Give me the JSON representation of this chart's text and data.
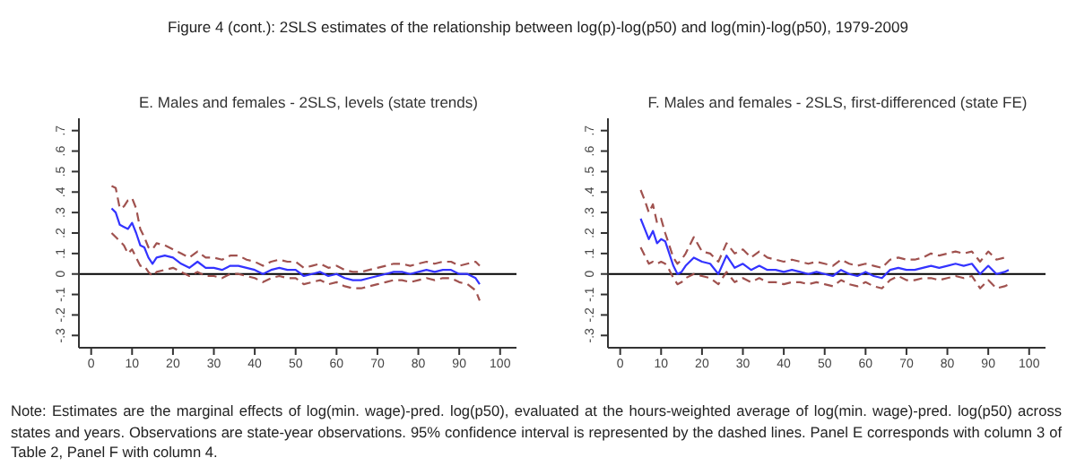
{
  "chart_data": [
    {
      "type": "line",
      "title": "E. Males and females - 2SLS, levels (state trends)",
      "annotations": [
        "Figure 4 (cont.): 2SLS estimates of the relationship between log(p)-log(p50) and log(min)-log(p50), 1979-2009",
        "Note: Estimates are the marginal effects of log(min. wage)-pred. log(p50), evaluated at the hours-weighted average of log(min. wage)-pred. log(p50) across states and years. Observations are state-year observations. 95% confidence interval is represented by the dashed lines. Panel E corresponds with column 3 of Table 2, Panel F with column 4."
      ],
      "x": [
        5,
        6,
        7,
        8,
        9,
        10,
        11,
        12,
        13,
        14,
        15,
        16,
        18,
        20,
        22,
        24,
        26,
        28,
        30,
        32,
        34,
        36,
        38,
        40,
        42,
        44,
        46,
        48,
        50,
        52,
        54,
        56,
        58,
        60,
        62,
        64,
        66,
        68,
        70,
        72,
        74,
        76,
        78,
        80,
        82,
        84,
        86,
        88,
        90,
        92,
        94,
        95
      ],
      "xlim": [
        -3,
        104
      ],
      "xticks": [
        0,
        10,
        20,
        30,
        40,
        50,
        60,
        70,
        80,
        90,
        100
      ],
      "ylim": [
        -0.36,
        0.76
      ],
      "yticks": [
        {
          "value": -0.3,
          "label": "-.3"
        },
        {
          "value": -0.2,
          "label": "-.2"
        },
        {
          "value": -0.1,
          "label": "-.1"
        },
        {
          "value": 0,
          "label": "0"
        },
        {
          "value": 0.1,
          "label": ".1"
        },
        {
          "value": 0.2,
          "label": ".2"
        },
        {
          "value": 0.3,
          "label": ".3"
        },
        {
          "value": 0.4,
          "label": ".4"
        },
        {
          "value": 0.5,
          "label": ".5"
        },
        {
          "value": 0.6,
          "label": ".6"
        },
        {
          "value": 0.7,
          "label": ".7"
        }
      ],
      "grid": false,
      "legend": false,
      "marker": "none",
      "ref_lines": [
        {
          "axis": "y",
          "value": 0,
          "color": "#000000"
        }
      ],
      "series": [
        {
          "type": "line",
          "color": "#a0524f",
          "line_style": "dashed",
          "values": [
            0.43,
            0.42,
            0.32,
            0.33,
            0.36,
            0.37,
            0.32,
            0.22,
            0.18,
            0.13,
            0.12,
            0.15,
            0.14,
            0.12,
            0.1,
            0.08,
            0.11,
            0.08,
            0.08,
            0.07,
            0.09,
            0.09,
            0.07,
            0.06,
            0.04,
            0.06,
            0.07,
            0.06,
            0.06,
            0.03,
            0.04,
            0.05,
            0.03,
            0.04,
            0.02,
            0.01,
            0.01,
            0.02,
            0.03,
            0.04,
            0.05,
            0.05,
            0.04,
            0.05,
            0.06,
            0.05,
            0.06,
            0.06,
            0.04,
            0.05,
            0.06,
            0.04
          ]
        },
        {
          "type": "line",
          "color": "#a0524f",
          "line_style": "dashed",
          "values": [
            0.2,
            0.18,
            0.16,
            0.14,
            0.1,
            0.12,
            0.08,
            0.04,
            0.04,
            0.01,
            -0.01,
            0.01,
            0.02,
            0.03,
            0.01,
            -0.01,
            0.01,
            -0.01,
            -0.01,
            -0.02,
            0,
            0,
            -0.01,
            -0.02,
            -0.04,
            -0.02,
            -0.01,
            -0.02,
            -0.02,
            -0.05,
            -0.04,
            -0.03,
            -0.05,
            -0.04,
            -0.06,
            -0.07,
            -0.07,
            -0.06,
            -0.05,
            -0.04,
            -0.03,
            -0.03,
            -0.04,
            -0.03,
            -0.02,
            -0.03,
            -0.02,
            -0.02,
            -0.04,
            -0.05,
            -0.08,
            -0.13
          ]
        },
        {
          "type": "line",
          "color": "#3333ff",
          "line_style": "solid",
          "values": [
            0.32,
            0.3,
            0.24,
            0.23,
            0.22,
            0.25,
            0.2,
            0.14,
            0.13,
            0.08,
            0.05,
            0.08,
            0.09,
            0.08,
            0.05,
            0.03,
            0.06,
            0.03,
            0.03,
            0.02,
            0.04,
            0.04,
            0.03,
            0.02,
            0,
            0.02,
            0.03,
            0.02,
            0.02,
            -0.01,
            0,
            0.01,
            -0.01,
            0,
            -0.02,
            -0.03,
            -0.03,
            -0.02,
            -0.01,
            0,
            0.01,
            0.01,
            0,
            0.01,
            0.02,
            0.01,
            0.02,
            0.02,
            0,
            0,
            -0.02,
            -0.05
          ]
        }
      ]
    },
    {
      "type": "line",
      "title": "F. Males and females - 2SLS, first-differenced (state FE)",
      "x": [
        5,
        6,
        7,
        8,
        9,
        10,
        11,
        12,
        13,
        14,
        15,
        16,
        18,
        20,
        22,
        24,
        26,
        28,
        30,
        32,
        34,
        36,
        38,
        40,
        42,
        44,
        46,
        48,
        50,
        52,
        54,
        56,
        58,
        60,
        62,
        64,
        66,
        68,
        70,
        72,
        74,
        76,
        78,
        80,
        82,
        84,
        86,
        88,
        90,
        92,
        94,
        95
      ],
      "xlim": [
        -3,
        104
      ],
      "xticks": [
        0,
        10,
        20,
        30,
        40,
        50,
        60,
        70,
        80,
        90,
        100
      ],
      "ylim": [
        -0.36,
        0.76
      ],
      "yticks": [
        {
          "value": -0.3,
          "label": "-.3"
        },
        {
          "value": -0.2,
          "label": "-.2"
        },
        {
          "value": -0.1,
          "label": "-.1"
        },
        {
          "value": 0,
          "label": "0"
        },
        {
          "value": 0.1,
          "label": ".1"
        },
        {
          "value": 0.2,
          "label": ".2"
        },
        {
          "value": 0.3,
          "label": ".3"
        },
        {
          "value": 0.4,
          "label": ".4"
        },
        {
          "value": 0.5,
          "label": ".5"
        },
        {
          "value": 0.6,
          "label": ".6"
        },
        {
          "value": 0.7,
          "label": ".7"
        }
      ],
      "grid": false,
      "legend": false,
      "marker": "none",
      "ref_lines": [
        {
          "axis": "y",
          "value": 0,
          "color": "#000000"
        }
      ],
      "series": [
        {
          "type": "line",
          "color": "#a0524f",
          "line_style": "dashed",
          "values": [
            0.41,
            0.36,
            0.3,
            0.34,
            0.25,
            0.27,
            0.2,
            0.14,
            0.08,
            0.05,
            0.07,
            0.1,
            0.18,
            0.11,
            0.1,
            0.06,
            0.15,
            0.1,
            0.12,
            0.08,
            0.11,
            0.08,
            0.07,
            0.06,
            0.07,
            0.06,
            0.05,
            0.06,
            0.05,
            0.04,
            0.07,
            0.05,
            0.04,
            0.05,
            0.04,
            0.03,
            0.07,
            0.08,
            0.07,
            0.07,
            0.08,
            0.1,
            0.09,
            0.1,
            0.11,
            0.1,
            0.11,
            0.06,
            0.11,
            0.07,
            0.08,
            0.08
          ]
        },
        {
          "type": "line",
          "color": "#a0524f",
          "line_style": "dashed",
          "values": [
            0.13,
            0.09,
            0.05,
            0.06,
            0.05,
            0.06,
            0.05,
            0.02,
            -0.02,
            -0.05,
            -0.04,
            -0.02,
            0,
            -0.01,
            -0.02,
            -0.05,
            0.01,
            -0.04,
            -0.02,
            -0.04,
            -0.02,
            -0.04,
            -0.04,
            -0.05,
            -0.04,
            -0.04,
            -0.05,
            -0.04,
            -0.05,
            -0.06,
            -0.03,
            -0.05,
            -0.06,
            -0.04,
            -0.06,
            -0.07,
            -0.03,
            -0.01,
            -0.03,
            -0.03,
            -0.02,
            -0.02,
            -0.03,
            -0.02,
            -0.01,
            -0.02,
            -0.01,
            -0.07,
            -0.03,
            -0.07,
            -0.06,
            -0.05
          ]
        },
        {
          "type": "line",
          "color": "#3333ff",
          "line_style": "solid",
          "values": [
            0.27,
            0.22,
            0.17,
            0.21,
            0.15,
            0.17,
            0.16,
            0.1,
            0.04,
            0,
            0.01,
            0.04,
            0.08,
            0.06,
            0.05,
            0,
            0.09,
            0.03,
            0.05,
            0.02,
            0.04,
            0.02,
            0.02,
            0.01,
            0.02,
            0.01,
            0,
            0.01,
            0,
            -0.01,
            0.02,
            0,
            -0.01,
            0.01,
            -0.01,
            -0.02,
            0.02,
            0.03,
            0.02,
            0.02,
            0.03,
            0.04,
            0.03,
            0.04,
            0.05,
            0.04,
            0.05,
            0,
            0.04,
            0,
            0.01,
            0.02
          ]
        }
      ]
    }
  ]
}
